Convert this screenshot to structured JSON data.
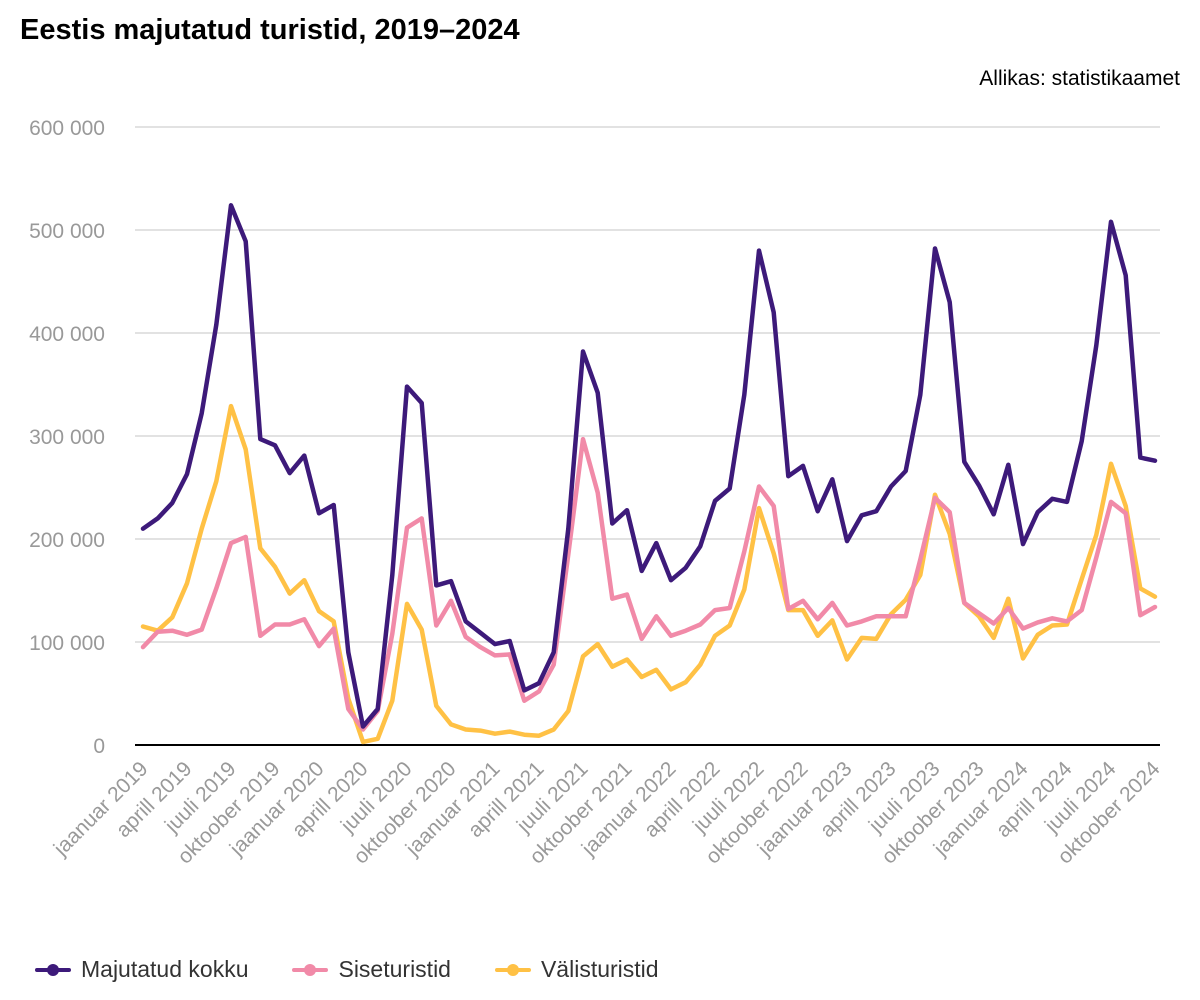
{
  "title": "Eestis majutatud turistid, 2019–2024",
  "source": "Allikas: statistikaamet",
  "chart_data": {
    "type": "line",
    "ylim": [
      0,
      600000
    ],
    "yticks": [
      0,
      100000,
      200000,
      300000,
      400000,
      500000,
      600000
    ],
    "ytick_labels": [
      "0",
      "100 000",
      "200 000",
      "300 000",
      "400 000",
      "500 000",
      "600 000"
    ],
    "xtick_labels": [
      "jaanuar 2019",
      "aprill 2019",
      "juuli 2019",
      "oktoober 2019",
      "jaanuar 2020",
      "aprill 2020",
      "juuli 2020",
      "oktoober 2020",
      "jaanuar 2021",
      "aprill 2021",
      "juuli 2021",
      "oktoober 2021",
      "jaanuar 2022",
      "aprill 2022",
      "juuli 2022",
      "oktoober 2022",
      "jaanuar 2023",
      "aprill 2023",
      "juuli 2023",
      "oktoober 2023",
      "jaanuar 2024",
      "aprill 2024",
      "juuli 2024",
      "oktoober 2024"
    ],
    "grid": true,
    "legend_position": "bottom-left",
    "series": [
      {
        "name": "Majutatud kokku",
        "color": "#3d1a7a",
        "values": [
          210000,
          220000,
          235000,
          263000,
          322000,
          408000,
          524000,
          489000,
          297000,
          291000,
          264000,
          281000,
          225000,
          233000,
          90000,
          18000,
          35000,
          165000,
          348000,
          332000,
          155000,
          159000,
          120000,
          109000,
          98000,
          101000,
          53000,
          60000,
          90000,
          210000,
          382000,
          342000,
          215000,
          228000,
          169000,
          196000,
          160000,
          172000,
          193000,
          237000,
          249000,
          340000,
          480000,
          420000,
          261000,
          271000,
          227000,
          258000,
          198000,
          223000,
          227000,
          251000,
          266000,
          340000,
          482000,
          430000,
          275000,
          252000,
          224000,
          272000,
          195000,
          226000,
          239000,
          236000,
          295000,
          388000,
          508000,
          456000,
          279000,
          276000
        ]
      },
      {
        "name": "Siseturistid",
        "color": "#f18aa8",
        "values": [
          95000,
          110000,
          111000,
          107000,
          112000,
          152000,
          196000,
          202000,
          106000,
          117000,
          117000,
          122000,
          96000,
          113000,
          35000,
          15000,
          33000,
          108000,
          211000,
          220000,
          116000,
          140000,
          105000,
          95000,
          87000,
          88000,
          43000,
          52000,
          78000,
          185000,
          297000,
          245000,
          142000,
          146000,
          103000,
          125000,
          106000,
          111000,
          117000,
          131000,
          133000,
          188000,
          251000,
          232000,
          132000,
          140000,
          122000,
          138000,
          116000,
          120000,
          125000,
          125000,
          125000,
          180000,
          240000,
          226000,
          138000,
          128000,
          118000,
          133000,
          113000,
          119000,
          123000,
          120000,
          131000,
          182000,
          236000,
          225000,
          126000,
          134000
        ]
      },
      {
        "name": "Välisturistid",
        "color": "#ffc145",
        "values": [
          115000,
          111000,
          124000,
          157000,
          210000,
          256000,
          329000,
          287000,
          191000,
          173000,
          147000,
          160000,
          130000,
          120000,
          45000,
          3000,
          6000,
          43000,
          137000,
          112000,
          38000,
          20000,
          15000,
          14000,
          11000,
          13000,
          10000,
          9000,
          15000,
          33000,
          86000,
          98000,
          76000,
          83000,
          66000,
          73000,
          54000,
          61000,
          78000,
          106000,
          116000,
          151000,
          230000,
          186000,
          131000,
          131000,
          106000,
          121000,
          83000,
          104000,
          103000,
          127000,
          141000,
          165000,
          243000,
          205000,
          138000,
          125000,
          104000,
          142000,
          84000,
          107000,
          116000,
          117000,
          161000,
          204000,
          273000,
          232000,
          152000,
          144000
        ]
      }
    ]
  }
}
